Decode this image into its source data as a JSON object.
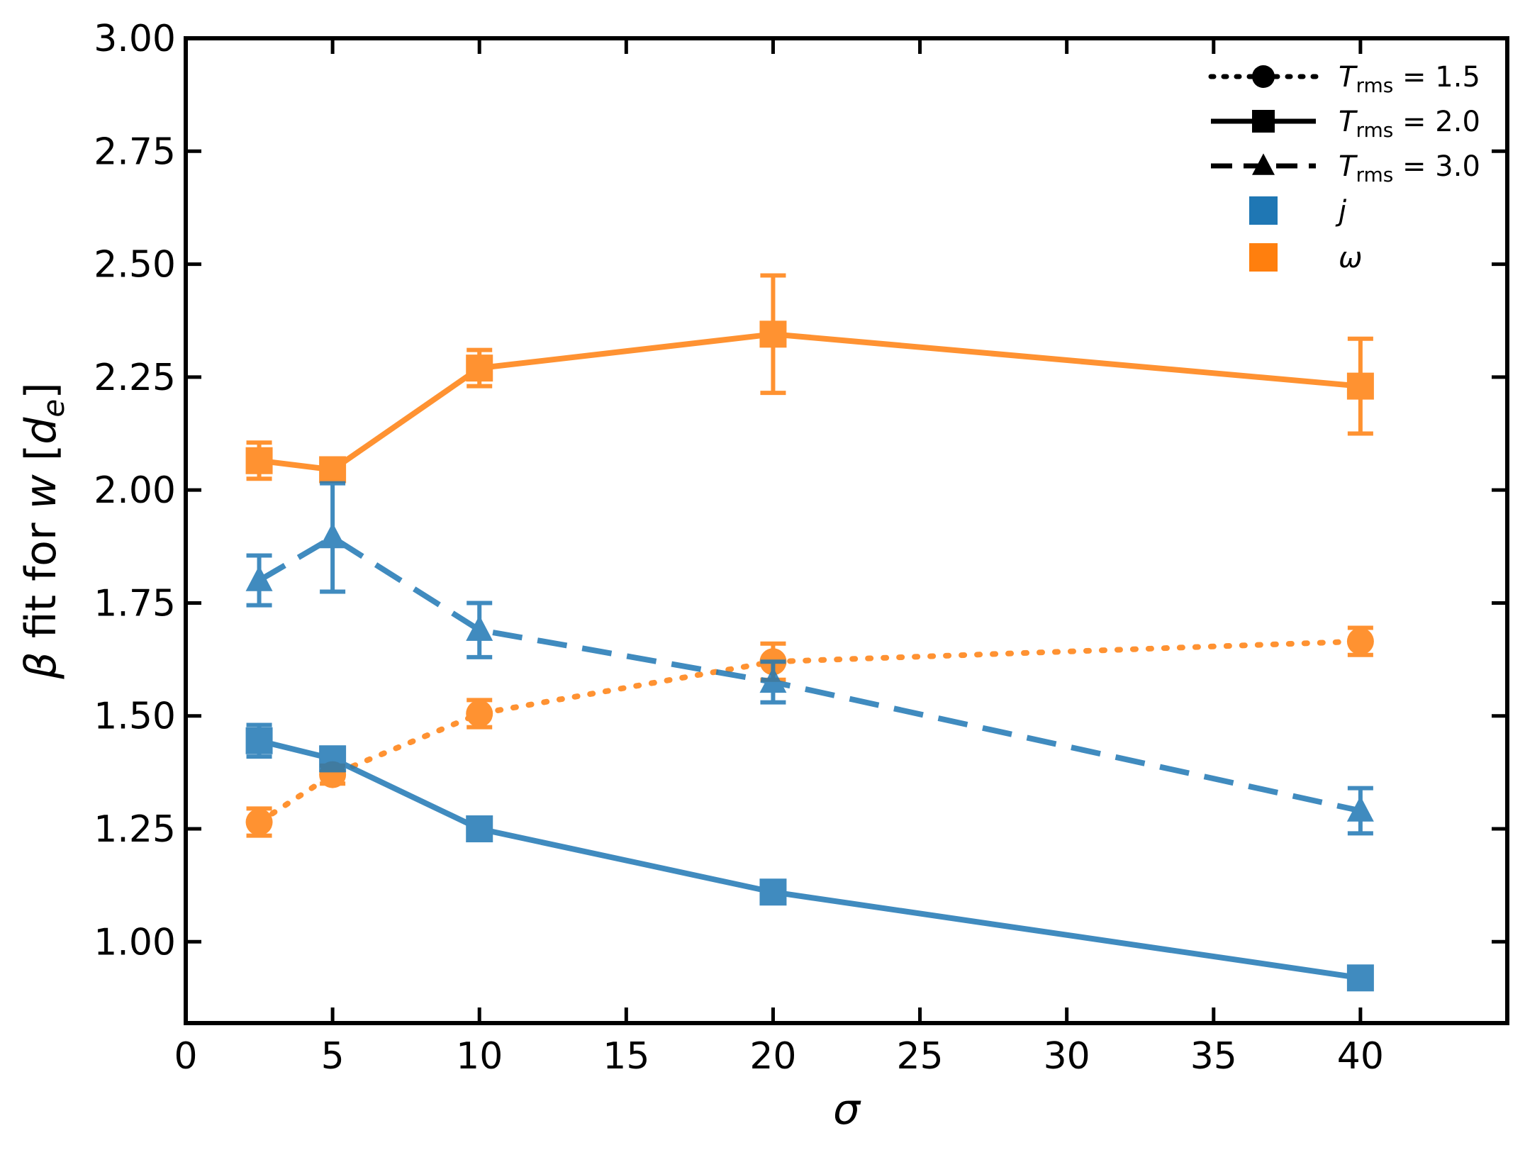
{
  "chart_data": {
    "type": "line",
    "title": "",
    "xlabel": "σ",
    "ylabel": {
      "prefix": "β",
      "text": " fit for ",
      "var": "w",
      "unit_open": " [",
      "unit_var": "d",
      "unit_sub": "e",
      "unit_close": "]"
    },
    "xlim": [
      0,
      45
    ],
    "ylim": [
      0.82,
      3.0
    ],
    "x_ticks": [
      0,
      5,
      10,
      15,
      20,
      25,
      30,
      35,
      40
    ],
    "x_tick_labels": [
      "0",
      "5",
      "10",
      "15",
      "20",
      "25",
      "30",
      "35",
      "40"
    ],
    "y_ticks": [
      1.0,
      1.25,
      1.5,
      1.75,
      2.0,
      2.25,
      2.5,
      2.75,
      3.0
    ],
    "y_tick_labels": [
      "1.00",
      "1.25",
      "1.50",
      "1.75",
      "2.00",
      "2.25",
      "2.50",
      "2.75",
      "3.00"
    ],
    "grid": false,
    "legend_position": "top-right",
    "colors": {
      "j": "#1f77b4",
      "omega": "#ff7f0e",
      "axis": "#000000"
    },
    "legend": [
      {
        "kind": "style",
        "linestyle": "dotted",
        "marker": "circle",
        "label_base": "T",
        "label_sub": "rms",
        "label_value": " = 1.5"
      },
      {
        "kind": "style",
        "linestyle": "solid",
        "marker": "square",
        "label_base": "T",
        "label_sub": "rms",
        "label_value": " = 2.0"
      },
      {
        "kind": "style",
        "linestyle": "dashed",
        "marker": "triangle",
        "label_base": "T",
        "label_sub": "rms",
        "label_value": " = 3.0"
      },
      {
        "kind": "color",
        "color_key": "j",
        "label": "j"
      },
      {
        "kind": "color",
        "color_key": "omega",
        "label": "ω"
      }
    ],
    "series": [
      {
        "name": "ω, T_rms = 2.0",
        "color_key": "omega",
        "linestyle": "solid",
        "marker": "square",
        "x": [
          2.5,
          5,
          10,
          20,
          40
        ],
        "y": [
          2.065,
          2.045,
          2.27,
          2.345,
          2.23
        ],
        "err": [
          0.04,
          0.02,
          0.04,
          0.13,
          0.105
        ]
      },
      {
        "name": "ω, T_rms = 1.5",
        "color_key": "omega",
        "linestyle": "dotted",
        "marker": "circle",
        "x": [
          2.5,
          5,
          10,
          20,
          40
        ],
        "y": [
          1.265,
          1.37,
          1.505,
          1.62,
          1.665
        ],
        "err": [
          0.03,
          0.02,
          0.03,
          0.04,
          0.03
        ]
      },
      {
        "name": "j, T_rms = 3.0",
        "color_key": "j",
        "linestyle": "dashed",
        "marker": "triangle",
        "x": [
          2.5,
          5,
          10,
          20,
          40
        ],
        "y": [
          1.8,
          1.895,
          1.69,
          1.575,
          1.29
        ],
        "err": [
          0.055,
          0.12,
          0.06,
          0.045,
          0.05
        ]
      },
      {
        "name": "j, T_rms = 2.0",
        "color_key": "j",
        "linestyle": "solid",
        "marker": "square",
        "x": [
          2.5,
          5,
          10,
          20,
          40
        ],
        "y": [
          1.445,
          1.405,
          1.25,
          1.11,
          0.92
        ],
        "err": [
          0.035,
          0.025,
          0.015,
          0.015,
          0.015
        ]
      }
    ]
  }
}
